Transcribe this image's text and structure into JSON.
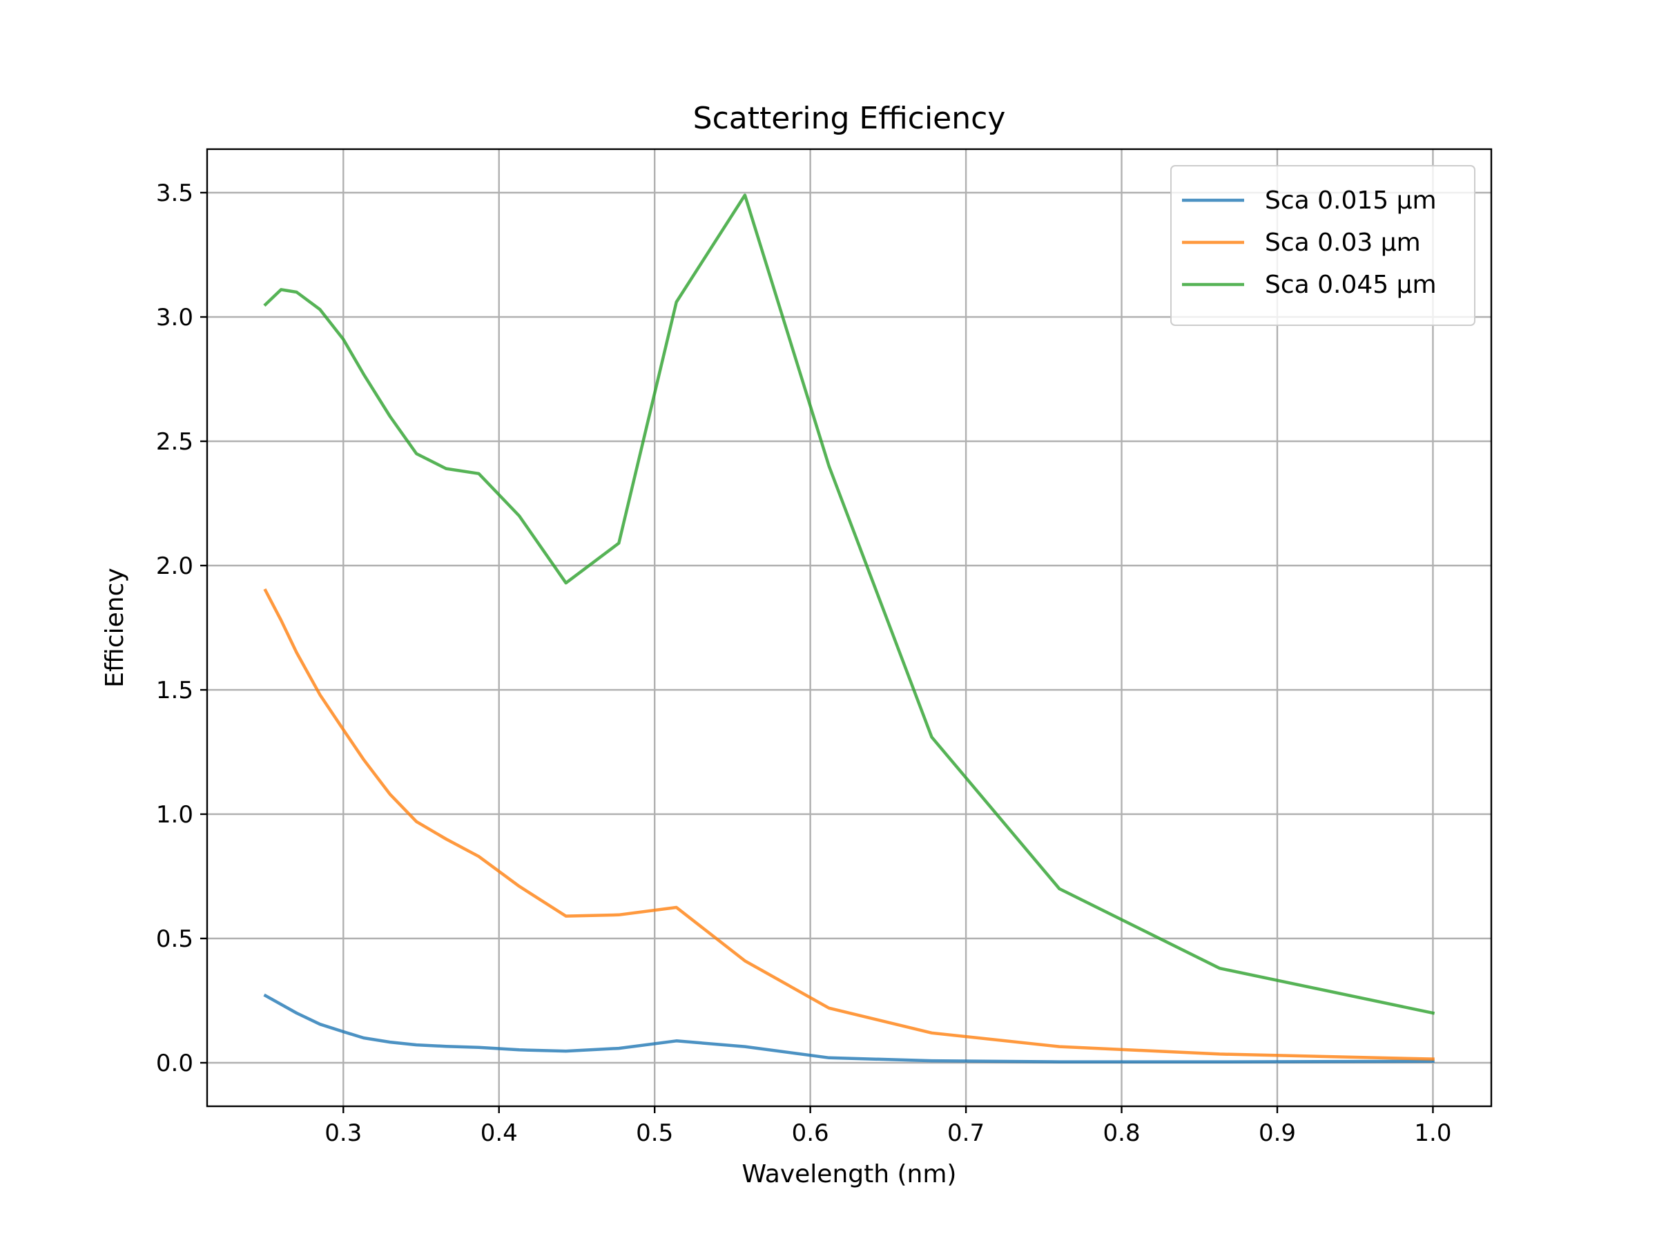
{
  "chart_data": {
    "type": "line",
    "title": "Scattering Efficiency",
    "xlabel": "Wavelength (nm)",
    "ylabel": "Efficiency",
    "xlim": [
      0.2125,
      1.0375
    ],
    "ylim": [
      -0.175,
      3.675
    ],
    "xticks": [
      0.3,
      0.4,
      0.5,
      0.6,
      0.7,
      0.8,
      0.9,
      1.0
    ],
    "xtick_labels": [
      "0.3",
      "0.4",
      "0.5",
      "0.6",
      "0.7",
      "0.8",
      "0.9",
      "1.0"
    ],
    "yticks": [
      0.0,
      0.5,
      1.0,
      1.5,
      2.0,
      2.5,
      3.0,
      3.5
    ],
    "ytick_labels": [
      "0.0",
      "0.5",
      "1.0",
      "1.5",
      "2.0",
      "2.5",
      "3.0",
      "3.5"
    ],
    "grid": true,
    "legend_position": "top-right",
    "series": [
      {
        "name": "Sca 0.015 µm",
        "color": "#1f77b4",
        "x": [
          0.25,
          0.27,
          0.285,
          0.3,
          0.313,
          0.33,
          0.347,
          0.366,
          0.387,
          0.413,
          0.443,
          0.477,
          0.514,
          0.558,
          0.612,
          0.678,
          0.76,
          0.863,
          1.0
        ],
        "y": [
          0.27,
          0.2,
          0.155,
          0.125,
          0.1,
          0.083,
          0.072,
          0.066,
          0.062,
          0.052,
          0.047,
          0.058,
          0.088,
          0.065,
          0.02,
          0.008,
          0.004,
          0.004,
          0.006
        ]
      },
      {
        "name": "Sca 0.03 µm",
        "color": "#ff7f0e",
        "x": [
          0.25,
          0.26,
          0.27,
          0.285,
          0.3,
          0.313,
          0.33,
          0.347,
          0.366,
          0.387,
          0.413,
          0.443,
          0.477,
          0.514,
          0.558,
          0.612,
          0.678,
          0.76,
          0.863,
          1.0
        ],
        "y": [
          1.9,
          1.78,
          1.65,
          1.48,
          1.34,
          1.22,
          1.08,
          0.97,
          0.9,
          0.83,
          0.71,
          0.59,
          0.595,
          0.625,
          0.41,
          0.22,
          0.12,
          0.065,
          0.035,
          0.015
        ]
      },
      {
        "name": "Sca 0.045 µm",
        "color": "#2ca02c",
        "x": [
          0.25,
          0.26,
          0.27,
          0.285,
          0.3,
          0.313,
          0.33,
          0.347,
          0.366,
          0.387,
          0.413,
          0.443,
          0.477,
          0.514,
          0.558,
          0.612,
          0.678,
          0.76,
          0.863,
          1.0
        ],
        "y": [
          3.05,
          3.11,
          3.1,
          3.03,
          2.91,
          2.77,
          2.6,
          2.45,
          2.39,
          2.37,
          2.2,
          1.93,
          2.09,
          3.06,
          3.49,
          2.4,
          1.31,
          0.7,
          0.38,
          0.2
        ]
      }
    ]
  }
}
